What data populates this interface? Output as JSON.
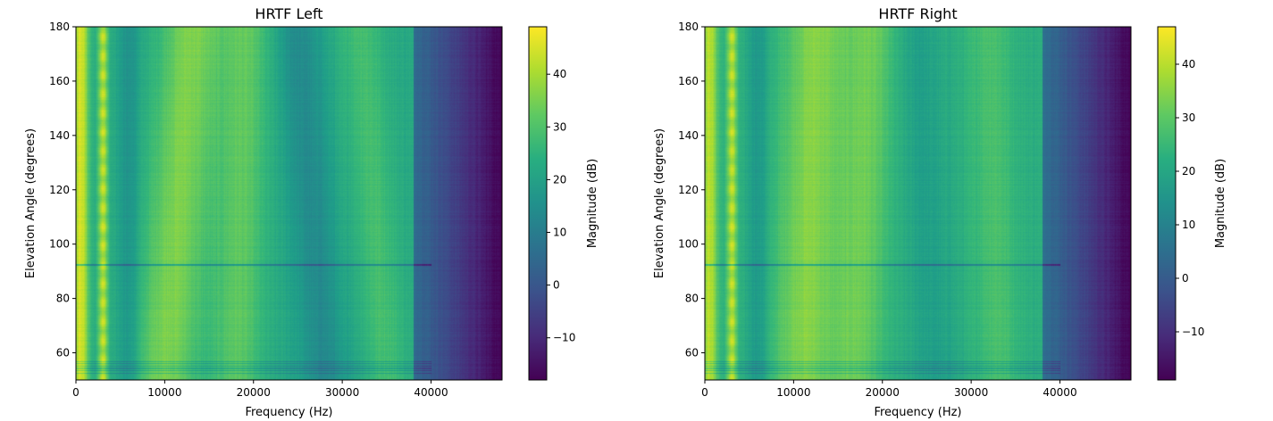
{
  "chart_data": [
    {
      "type": "heatmap",
      "title": "HRTF Left",
      "xlabel": "Frequency (Hz)",
      "ylabel": "Elevation Angle (degrees)",
      "xlim": [
        0,
        48000
      ],
      "ylim": [
        50,
        180
      ],
      "xticks": [
        0,
        10000,
        20000,
        30000,
        40000
      ],
      "yticks": [
        60,
        80,
        100,
        120,
        140,
        160,
        180
      ],
      "colorbar": {
        "label": "Magnitude (dB)",
        "range": [
          -18,
          49
        ],
        "ticks": [
          -10,
          0,
          10,
          20,
          30,
          40
        ],
        "colormap": "viridis"
      },
      "features": {
        "low_freq_band_db": 45,
        "peak_band": {
          "freq_hz": [
            2500,
            3500
          ],
          "db": 47
        },
        "mid_ridge": {
          "freq_hz_at_top": 13000,
          "freq_hz_at_bottom": 10000,
          "db": 36
        },
        "second_ridge": {
          "freq_hz_at_top": 19000,
          "freq_hz_at_bottom": 18000,
          "db": 32
        },
        "notch_region": {
          "freq_hz_at_top": 25000,
          "freq_hz_at_bottom": 28000,
          "db": 14
        },
        "upper_ridge": {
          "freq_hz_at_top": 32000,
          "freq_hz_at_bottom": 35000,
          "db": 29
        },
        "rolloff_start_hz": 38000,
        "max_freq_db": -18,
        "horizontal_line_elevation": 92.5
      }
    },
    {
      "type": "heatmap",
      "title": "HRTF Right",
      "xlabel": "Frequency (Hz)",
      "ylabel": "Elevation Angle (degrees)",
      "xlim": [
        0,
        48000
      ],
      "ylim": [
        50,
        180
      ],
      "xticks": [
        0,
        10000,
        20000,
        30000,
        40000
      ],
      "yticks": [
        60,
        80,
        100,
        120,
        140,
        160,
        180
      ],
      "colorbar": {
        "label": "Magnitude (dB)",
        "range": [
          -19,
          47
        ],
        "ticks": [
          -10,
          0,
          10,
          20,
          30,
          40
        ],
        "colormap": "viridis"
      },
      "features": {
        "low_freq_band_db": 40,
        "peak_band": {
          "freq_hz": [
            2500,
            3500
          ],
          "db": 45
        },
        "mid_ridge": {
          "freq_hz_at_top": 12500,
          "freq_hz_at_bottom": 11000,
          "db": 35
        },
        "second_ridge": {
          "freq_hz_at_top": 18500,
          "freq_hz_at_bottom": 17000,
          "db": 32
        },
        "notch_region": {
          "freq_hz_at_top": 24000,
          "freq_hz_at_bottom": 26000,
          "db": 18
        },
        "upper_ridge": {
          "freq_hz_at_top": 32000,
          "freq_hz_at_bottom": 33000,
          "db": 28
        },
        "rolloff_start_hz": 38000,
        "max_freq_db": -19,
        "horizontal_line_elevation": 92.5
      }
    }
  ]
}
